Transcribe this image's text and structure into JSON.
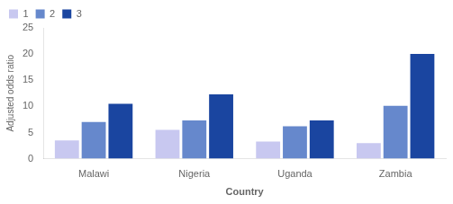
{
  "chart_data": {
    "type": "bar",
    "categories": [
      "Malawi",
      "Nigeria",
      "Uganda",
      "Zambia"
    ],
    "series": [
      {
        "name": "1",
        "color": "#c8c8f0",
        "values": [
          3.5,
          5.5,
          3.3,
          3.0
        ]
      },
      {
        "name": "2",
        "color": "#6688cc",
        "values": [
          7.0,
          7.3,
          6.2,
          10.1
        ]
      },
      {
        "name": "3",
        "color": "#1a45a0",
        "values": [
          10.5,
          12.3,
          7.3,
          20.0
        ]
      }
    ],
    "xlabel": "Country",
    "ylabel": "Adjusted odds ratio",
    "ylim": [
      0,
      25
    ],
    "yticks": [
      0,
      5,
      10,
      15,
      20,
      25
    ],
    "grid": false,
    "legend": "upper left"
  }
}
